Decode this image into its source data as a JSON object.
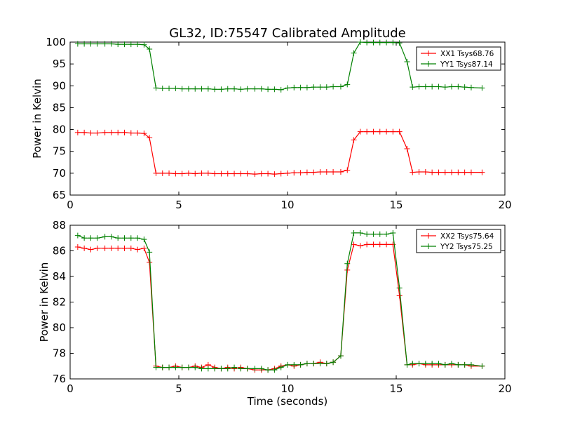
{
  "figure_title": "GL32, ID:75547 Calibrated Amplitude",
  "chart_data": [
    {
      "type": "line",
      "xlabel": "",
      "ylabel": "Power in Kelvin",
      "xlim": [
        0,
        20
      ],
      "ylim": [
        65,
        100
      ],
      "xticks": [
        "0",
        "5",
        "10",
        "15",
        "20"
      ],
      "yticks": [
        "65",
        "70",
        "75",
        "80",
        "85",
        "90",
        "95",
        "100"
      ],
      "grid": false,
      "legend_position": "top-right",
      "x": [
        0.35,
        0.65,
        0.95,
        1.25,
        1.6,
        1.9,
        2.2,
        2.5,
        2.8,
        3.1,
        3.4,
        3.65,
        3.95,
        4.25,
        4.55,
        4.85,
        5.15,
        5.45,
        5.75,
        6.05,
        6.35,
        6.65,
        6.95,
        7.25,
        7.55,
        7.85,
        8.15,
        8.5,
        8.8,
        9.1,
        9.4,
        9.7,
        10.0,
        10.3,
        10.6,
        10.9,
        11.2,
        11.5,
        11.8,
        12.1,
        12.45,
        12.75,
        13.05,
        13.35,
        13.65,
        13.95,
        14.25,
        14.55,
        14.85,
        15.15,
        15.5,
        15.75,
        16.05,
        16.35,
        16.65,
        16.95,
        17.25,
        17.55,
        17.85,
        18.15,
        18.45,
        18.95
      ],
      "series": [
        {
          "name": "XX1 Tsys68.76",
          "color": "#ff0000",
          "values": [
            79.3,
            79.3,
            79.2,
            79.2,
            79.3,
            79.3,
            79.3,
            79.3,
            79.2,
            79.2,
            79.1,
            78.1,
            70.0,
            70.0,
            70.0,
            69.9,
            69.9,
            70.0,
            69.9,
            70.0,
            70.0,
            69.9,
            69.9,
            69.9,
            69.9,
            69.9,
            69.9,
            69.8,
            69.9,
            69.9,
            69.8,
            69.9,
            70.0,
            70.1,
            70.1,
            70.2,
            70.2,
            70.3,
            70.3,
            70.3,
            70.3,
            70.7,
            77.6,
            79.5,
            79.5,
            79.5,
            79.5,
            79.5,
            79.5,
            79.5,
            75.6,
            70.2,
            70.3,
            70.3,
            70.2,
            70.2,
            70.2,
            70.2,
            70.2,
            70.2,
            70.2,
            70.2
          ]
        },
        {
          "name": "YY1 Tsys87.14",
          "color": "#008000",
          "values": [
            99.6,
            99.6,
            99.6,
            99.6,
            99.6,
            99.6,
            99.5,
            99.5,
            99.5,
            99.5,
            99.4,
            98.4,
            89.5,
            89.4,
            89.4,
            89.4,
            89.3,
            89.3,
            89.3,
            89.3,
            89.3,
            89.2,
            89.2,
            89.3,
            89.3,
            89.2,
            89.3,
            89.3,
            89.3,
            89.2,
            89.2,
            89.1,
            89.5,
            89.6,
            89.6,
            89.6,
            89.7,
            89.7,
            89.7,
            89.8,
            89.8,
            90.3,
            97.5,
            100.0,
            99.9,
            99.9,
            99.9,
            99.9,
            99.9,
            99.8,
            95.5,
            89.7,
            89.8,
            89.8,
            89.8,
            89.8,
            89.7,
            89.8,
            89.8,
            89.7,
            89.6,
            89.5
          ]
        }
      ]
    },
    {
      "type": "line",
      "xlabel": "Time (seconds)",
      "ylabel": "Power in Kelvin",
      "xlim": [
        0,
        20
      ],
      "ylim": [
        76,
        88
      ],
      "xticks": [
        "0",
        "5",
        "10",
        "15",
        "20"
      ],
      "yticks": [
        "76",
        "78",
        "80",
        "82",
        "84",
        "86",
        "88"
      ],
      "grid": false,
      "legend_position": "top-right",
      "x": [
        0.35,
        0.65,
        0.95,
        1.25,
        1.6,
        1.9,
        2.2,
        2.5,
        2.8,
        3.1,
        3.4,
        3.65,
        3.95,
        4.25,
        4.55,
        4.85,
        5.15,
        5.45,
        5.75,
        6.05,
        6.35,
        6.65,
        6.95,
        7.25,
        7.55,
        7.85,
        8.15,
        8.5,
        8.8,
        9.1,
        9.4,
        9.7,
        10.0,
        10.3,
        10.6,
        10.9,
        11.2,
        11.5,
        11.8,
        12.1,
        12.45,
        12.75,
        13.05,
        13.35,
        13.65,
        13.95,
        14.25,
        14.55,
        14.85,
        15.15,
        15.5,
        15.75,
        16.05,
        16.35,
        16.65,
        16.95,
        17.25,
        17.55,
        17.85,
        18.15,
        18.45,
        18.95
      ],
      "series": [
        {
          "name": "XX2 Tsys75.64",
          "color": "#ff0000",
          "values": [
            86.3,
            86.2,
            86.1,
            86.2,
            86.2,
            86.2,
            86.2,
            86.2,
            86.2,
            86.1,
            86.2,
            85.1,
            77.0,
            76.9,
            76.9,
            77.0,
            76.9,
            76.9,
            77.0,
            76.9,
            77.1,
            76.9,
            76.8,
            76.9,
            76.8,
            76.9,
            76.8,
            76.7,
            76.7,
            76.7,
            76.8,
            77.0,
            77.1,
            77.0,
            77.1,
            77.2,
            77.2,
            77.3,
            77.2,
            77.3,
            77.8,
            84.5,
            86.5,
            86.4,
            86.5,
            86.5,
            86.5,
            86.5,
            86.5,
            82.5,
            77.1,
            77.1,
            77.2,
            77.1,
            77.1,
            77.1,
            77.1,
            77.1,
            77.1,
            77.1,
            77.0,
            77.0
          ]
        },
        {
          "name": "YY2 Tsys75.25",
          "color": "#008000",
          "values": [
            87.2,
            87.0,
            87.0,
            87.0,
            87.1,
            87.1,
            87.0,
            87.0,
            87.0,
            87.0,
            86.9,
            85.9,
            76.9,
            76.9,
            76.9,
            76.9,
            76.9,
            76.9,
            76.9,
            76.8,
            76.8,
            76.8,
            76.8,
            76.8,
            76.9,
            76.8,
            76.8,
            76.8,
            76.8,
            76.7,
            76.7,
            76.9,
            77.1,
            77.1,
            77.1,
            77.2,
            77.2,
            77.2,
            77.2,
            77.3,
            77.8,
            85.0,
            87.4,
            87.4,
            87.3,
            87.3,
            87.3,
            87.3,
            87.4,
            83.1,
            77.1,
            77.2,
            77.2,
            77.2,
            77.2,
            77.2,
            77.1,
            77.2,
            77.1,
            77.1,
            77.1,
            77.0
          ]
        }
      ]
    }
  ]
}
